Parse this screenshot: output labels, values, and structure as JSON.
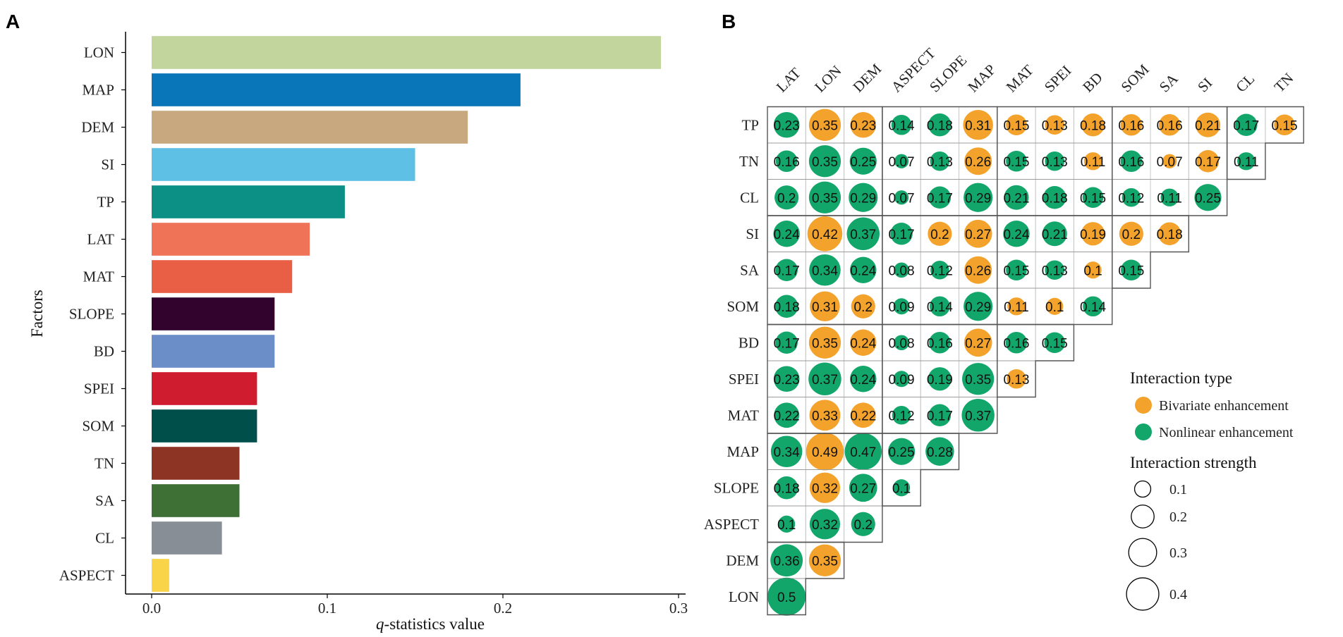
{
  "chart_data": [
    {
      "panel": "A",
      "type": "bar",
      "orientation": "horizontal",
      "xlabel_italic": "q",
      "xlabel_rest": "-statistics value",
      "ylabel": "Factors",
      "xlim": [
        0.0,
        0.3
      ],
      "xticks": [
        "0.0",
        "0.1",
        "0.2",
        "0.3"
      ],
      "categories": [
        "LON",
        "MAP",
        "DEM",
        "SI",
        "TP",
        "LAT",
        "MAT",
        "SLOPE",
        "BD",
        "SPEI",
        "SOM",
        "TN",
        "SA",
        "CL",
        "ASPECT"
      ],
      "values": [
        0.29,
        0.21,
        0.18,
        0.15,
        0.11,
        0.09,
        0.08,
        0.07,
        0.07,
        0.06,
        0.06,
        0.05,
        0.05,
        0.04,
        0.01
      ],
      "colors": [
        "#c2d59c",
        "#0a76ba",
        "#c8a87f",
        "#5fc0e6",
        "#0c9086",
        "#ef7356",
        "#e95f45",
        "#32032d",
        "#6b8dc8",
        "#d01c2f",
        "#004f4b",
        "#8e3424",
        "#3e6f35",
        "#878e96",
        "#f9d448"
      ]
    },
    {
      "panel": "B",
      "type": "heatmap",
      "subtype": "interaction-bubble-matrix",
      "columns": [
        "LAT",
        "LON",
        "DEM",
        "ASPECT",
        "SLOPE",
        "MAP",
        "MAT",
        "SPEI",
        "BD",
        "SOM",
        "SA",
        "SI",
        "CL",
        "TN"
      ],
      "rows": [
        {
          "label": "TP",
          "cells": [
            [
              "0.23",
              "N"
            ],
            [
              "0.35",
              "B"
            ],
            [
              "0.23",
              "B"
            ],
            [
              "0.14",
              "N"
            ],
            [
              "0.18",
              "N"
            ],
            [
              "0.31",
              "B"
            ],
            [
              "0.15",
              "B"
            ],
            [
              "0.13",
              "B"
            ],
            [
              "0.18",
              "B"
            ],
            [
              "0.16",
              "B"
            ],
            [
              "0.16",
              "B"
            ],
            [
              "0.21",
              "B"
            ],
            [
              "0.17",
              "N"
            ],
            [
              "0.15",
              "B"
            ]
          ]
        },
        {
          "label": "TN",
          "cells": [
            [
              "0.16",
              "N"
            ],
            [
              "0.35",
              "N"
            ],
            [
              "0.25",
              "N"
            ],
            [
              "0.07",
              "N"
            ],
            [
              "0.13",
              "N"
            ],
            [
              "0.26",
              "B"
            ],
            [
              "0.15",
              "N"
            ],
            [
              "0.13",
              "N"
            ],
            [
              "0.11",
              "B"
            ],
            [
              "0.16",
              "N"
            ],
            [
              "0.07",
              "B"
            ],
            [
              "0.17",
              "B"
            ],
            [
              "0.11",
              "N"
            ]
          ]
        },
        {
          "label": "CL",
          "cells": [
            [
              "0.2",
              "N"
            ],
            [
              "0.35",
              "N"
            ],
            [
              "0.29",
              "N"
            ],
            [
              "0.07",
              "N"
            ],
            [
              "0.17",
              "N"
            ],
            [
              "0.29",
              "N"
            ],
            [
              "0.21",
              "N"
            ],
            [
              "0.18",
              "N"
            ],
            [
              "0.15",
              "N"
            ],
            [
              "0.12",
              "N"
            ],
            [
              "0.11",
              "N"
            ],
            [
              "0.25",
              "N"
            ]
          ]
        },
        {
          "label": "SI",
          "cells": [
            [
              "0.24",
              "N"
            ],
            [
              "0.42",
              "B"
            ],
            [
              "0.37",
              "N"
            ],
            [
              "0.17",
              "N"
            ],
            [
              "0.2",
              "B"
            ],
            [
              "0.27",
              "B"
            ],
            [
              "0.24",
              "N"
            ],
            [
              "0.21",
              "N"
            ],
            [
              "0.19",
              "B"
            ],
            [
              "0.2",
              "B"
            ],
            [
              "0.18",
              "B"
            ]
          ]
        },
        {
          "label": "SA",
          "cells": [
            [
              "0.17",
              "N"
            ],
            [
              "0.34",
              "N"
            ],
            [
              "0.24",
              "N"
            ],
            [
              "0.08",
              "N"
            ],
            [
              "0.12",
              "N"
            ],
            [
              "0.26",
              "B"
            ],
            [
              "0.15",
              "N"
            ],
            [
              "0.13",
              "N"
            ],
            [
              "0.1",
              "B"
            ],
            [
              "0.15",
              "N"
            ]
          ]
        },
        {
          "label": "SOM",
          "cells": [
            [
              "0.18",
              "N"
            ],
            [
              "0.31",
              "B"
            ],
            [
              "0.2",
              "B"
            ],
            [
              "0.09",
              "N"
            ],
            [
              "0.14",
              "N"
            ],
            [
              "0.29",
              "N"
            ],
            [
              "0.11",
              "B"
            ],
            [
              "0.1",
              "B"
            ],
            [
              "0.14",
              "N"
            ]
          ]
        },
        {
          "label": "BD",
          "cells": [
            [
              "0.17",
              "N"
            ],
            [
              "0.35",
              "B"
            ],
            [
              "0.24",
              "B"
            ],
            [
              "0.08",
              "N"
            ],
            [
              "0.16",
              "N"
            ],
            [
              "0.27",
              "B"
            ],
            [
              "0.16",
              "N"
            ],
            [
              "0.15",
              "N"
            ]
          ]
        },
        {
          "label": "SPEI",
          "cells": [
            [
              "0.23",
              "N"
            ],
            [
              "0.37",
              "N"
            ],
            [
              "0.24",
              "N"
            ],
            [
              "0.09",
              "N"
            ],
            [
              "0.19",
              "N"
            ],
            [
              "0.35",
              "N"
            ],
            [
              "0.13",
              "B"
            ]
          ]
        },
        {
          "label": "MAT",
          "cells": [
            [
              "0.22",
              "N"
            ],
            [
              "0.33",
              "B"
            ],
            [
              "0.22",
              "B"
            ],
            [
              "0.12",
              "N"
            ],
            [
              "0.17",
              "N"
            ],
            [
              "0.37",
              "N"
            ]
          ]
        },
        {
          "label": "MAP",
          "cells": [
            [
              "0.34",
              "N"
            ],
            [
              "0.49",
              "B"
            ],
            [
              "0.47",
              "N"
            ],
            [
              "0.25",
              "N"
            ],
            [
              "0.28",
              "N"
            ]
          ]
        },
        {
          "label": "SLOPE",
          "cells": [
            [
              "0.18",
              "N"
            ],
            [
              "0.32",
              "B"
            ],
            [
              "0.27",
              "N"
            ],
            [
              "0.1",
              "N"
            ]
          ]
        },
        {
          "label": "ASPECT",
          "cells": [
            [
              "0.1",
              "N"
            ],
            [
              "0.32",
              "N"
            ],
            [
              "0.2",
              "N"
            ]
          ]
        },
        {
          "label": "DEM",
          "cells": [
            [
              "0.36",
              "N"
            ],
            [
              "0.35",
              "B"
            ]
          ]
        },
        {
          "label": "LON",
          "cells": [
            [
              "0.5",
              "N"
            ]
          ]
        }
      ],
      "colors": {
        "B": "#f3a22c",
        "N": "#13a66a"
      },
      "legend": {
        "type_title": "Interaction type",
        "types": [
          {
            "key": "B",
            "label": "Bivariate enhancement"
          },
          {
            "key": "N",
            "label": "Nonlinear enhancement"
          }
        ],
        "strength_title": "Interaction strength",
        "strengths": [
          {
            "value": 0.1,
            "label": "0.1"
          },
          {
            "value": 0.2,
            "label": "0.2"
          },
          {
            "value": 0.3,
            "label": "0.3"
          },
          {
            "value": 0.4,
            "label": "0.4"
          }
        ]
      }
    }
  ],
  "panel_labels": {
    "a": "A",
    "b": "B"
  }
}
